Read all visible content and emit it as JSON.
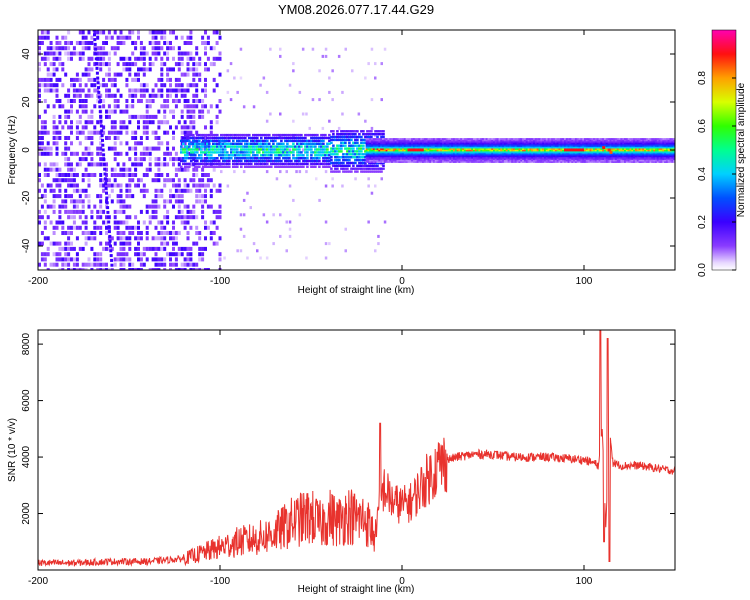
{
  "title": "YM08.2026.077.17.44.G29",
  "chart_data": [
    {
      "type": "heatmap",
      "title": "YM08.2026.077.17.44.G29",
      "xlabel": "Height of straight line (km)",
      "ylabel": "Frequency (Hz)",
      "xlim": [
        -200,
        150
      ],
      "ylim": [
        -50,
        50
      ],
      "xticks": [
        -200,
        -100,
        0,
        100
      ],
      "yticks": [
        -40,
        -20,
        0,
        20,
        40
      ],
      "colorbar": {
        "label": "Normalized spectral amplitude",
        "range": [
          0.0,
          1.0
        ],
        "ticks": [
          "0.0",
          "0.2",
          "0.4",
          "0.6",
          "0.8"
        ],
        "colormap": [
          "#ffffff",
          "#5a00ff",
          "#0000ff",
          "#00c8ff",
          "#00ff60",
          "#ffff00",
          "#ff8000",
          "#ff0000",
          "#ff00ff"
        ]
      },
      "regions": [
        {
          "from_km": -200,
          "to_km": -105,
          "description_values": {
            "amplitude": 0.1
          }
        },
        {
          "from_km": -120,
          "to_km": -20,
          "center_hz": 0,
          "half_width_hz": 8,
          "amplitude": 0.35
        },
        {
          "from_km": -20,
          "to_km": 150,
          "center_hz": 0,
          "half_width_hz": 4,
          "amplitude": 0.6
        }
      ]
    },
    {
      "type": "line",
      "xlabel": "Height of straight line (km)",
      "ylabel": "SNR (10 * v/v)",
      "xlim": [
        -200,
        150
      ],
      "ylim": [
        0,
        8500
      ],
      "xticks": [
        -200,
        -100,
        0,
        100
      ],
      "yticks": [
        2000,
        4000,
        6000,
        8000
      ],
      "series": [
        {
          "name": "SNR",
          "color": "#e8322d",
          "x": [
            -200,
            -180,
            -160,
            -140,
            -120,
            -110,
            -100,
            -90,
            -80,
            -70,
            -60,
            -50,
            -45,
            -40,
            -35,
            -30,
            -25,
            -20,
            -15,
            -12,
            -10,
            -5,
            0,
            5,
            10,
            15,
            20,
            25,
            30,
            40,
            50,
            60,
            70,
            80,
            90,
            100,
            105,
            108,
            110,
            112,
            114,
            116,
            120,
            130,
            140,
            150
          ],
          "values": [
            250,
            250,
            300,
            300,
            400,
            600,
            800,
            1000,
            1100,
            1300,
            1700,
            1900,
            1600,
            1900,
            1700,
            2000,
            1800,
            1800,
            1200,
            2400,
            2900,
            2400,
            2300,
            2400,
            2900,
            3300,
            3700,
            3900,
            4000,
            4100,
            4100,
            4000,
            4000,
            4000,
            3950,
            3900,
            3800,
            3700,
            5000,
            1500,
            5000,
            3800,
            3700,
            3700,
            3600,
            3500
          ],
          "spikes": [
            {
              "x": -12,
              "value": 5200
            },
            {
              "x": 109,
              "value": 8500
            },
            {
              "x": 113,
              "value": 8200
            },
            {
              "x": 111,
              "value": 1000
            },
            {
              "x": 114,
              "value": 300
            }
          ]
        }
      ]
    }
  ]
}
